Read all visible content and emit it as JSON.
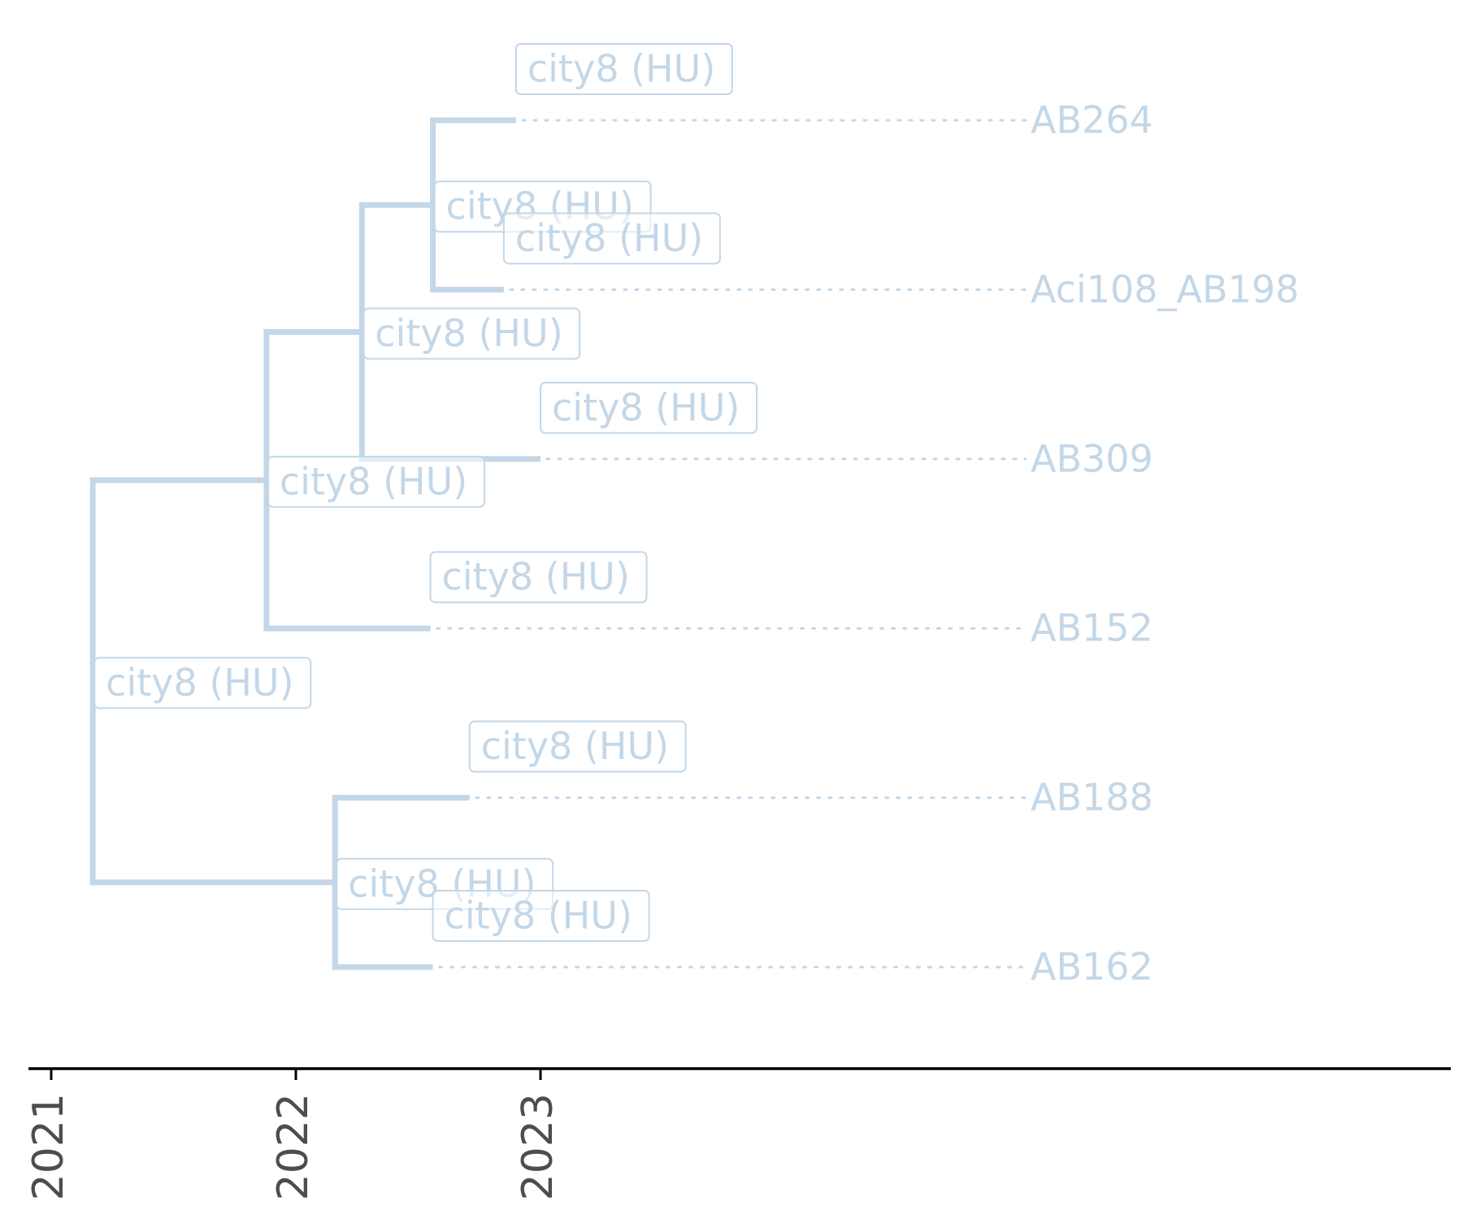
{
  "chart_data": {
    "type": "time-scaled phylogenetic tree",
    "xaxis": {
      "ticks": [
        "2021",
        "2022",
        "2023"
      ]
    },
    "tips": [
      {
        "id": "AB264",
        "label": "AB264",
        "date": 2022.9
      },
      {
        "id": "AB198",
        "label": "Aci108_AB198",
        "date": 2022.85
      },
      {
        "id": "AB309",
        "label": "AB309",
        "date": 2023.0
      },
      {
        "id": "AB152",
        "label": "AB152",
        "date": 2022.55
      },
      {
        "id": "AB188",
        "label": "AB188",
        "date": 2022.71
      },
      {
        "id": "AB162",
        "label": "AB162",
        "date": 2022.56
      }
    ],
    "internal_nodes": [
      {
        "id": "n_ab264_ab198",
        "date": 2022.56,
        "children": [
          "AB264",
          "AB198"
        ]
      },
      {
        "id": "n_with_ab309",
        "date": 2022.27,
        "children": [
          "n_ab264_ab198",
          "AB309"
        ]
      },
      {
        "id": "n_with_ab152",
        "date": 2021.88,
        "children": [
          "n_with_ab309",
          "AB152"
        ]
      },
      {
        "id": "n_ab188_ab162",
        "date": 2022.16,
        "children": [
          "AB188",
          "AB162"
        ]
      },
      {
        "id": "root",
        "date": 2021.17,
        "children": [
          "n_with_ab152",
          "n_ab188_ab162"
        ]
      }
    ],
    "node_annotations": [
      {
        "node": "AB264",
        "label": "city8 (HU)"
      },
      {
        "node": "n_ab264_ab198",
        "label": "city8 (HU)"
      },
      {
        "node": "AB198",
        "label": "city8 (HU)"
      },
      {
        "node": "n_with_ab309",
        "label": "city8 (HU)"
      },
      {
        "node": "n_with_ab152",
        "label": "city8 (HU)"
      },
      {
        "node": "AB309",
        "label": "city8 (HU)"
      },
      {
        "node": "AB152",
        "label": "city8 (HU)"
      },
      {
        "node": "root",
        "label": "city8 (HU)"
      },
      {
        "node": "AB188",
        "label": "city8 (HU)"
      },
      {
        "node": "n_ab188_ab162",
        "label": "city8 (HU)"
      },
      {
        "node": "AB162",
        "label": "city8 (HU)"
      }
    ],
    "colors": {
      "branch": "#c3d7e8",
      "label_text": "#c3d7e8",
      "axis": "#000000",
      "tick_text": "#4d4d4d"
    }
  }
}
